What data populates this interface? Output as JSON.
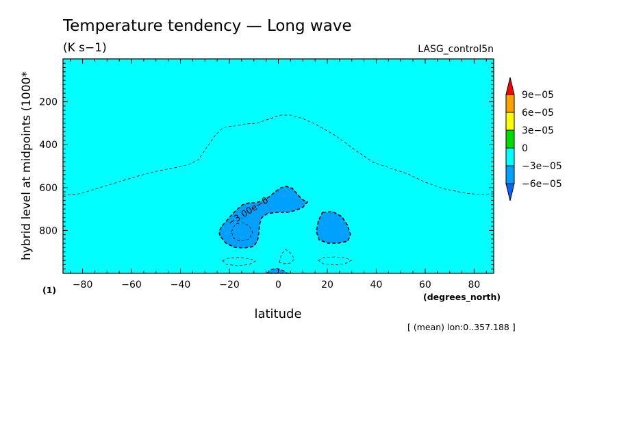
{
  "chart_data": {
    "type": "contour",
    "title": "Temperature tendency — Long wave",
    "units": "(K s−1)",
    "dataset": "LASG_control5n",
    "xlabel": "latitude",
    "x_unit": "(degrees_north)",
    "ylabel": "hybrid level at midpoints (1000*",
    "y_unit": "(1)",
    "footer": "[ (mean) lon:0..357.188 ]",
    "xlim": [
      -88,
      88
    ],
    "ylim": [
      1000,
      0
    ],
    "x_ticks": [
      -80,
      -60,
      -40,
      -20,
      0,
      20,
      40,
      60,
      80
    ],
    "x_tick_labels": [
      "−80",
      "−60",
      "−40",
      "−20",
      "0",
      "20",
      "40",
      "60",
      "80"
    ],
    "y_ticks": [
      200,
      400,
      600,
      800
    ],
    "y_tick_labels": [
      "200",
      "400",
      "600",
      "800"
    ],
    "contour_label": "−3.00e−0",
    "colorbar": {
      "levels": [
        "9e−05",
        "6e−05",
        "3e−05",
        "0",
        "−3e−05",
        "−6e−05"
      ],
      "colors": [
        "#ff0000",
        "#ffa000",
        "#ffff00",
        "#00dc00",
        "#00ffff",
        "#00a0ff",
        "#0064ff"
      ]
    },
    "background_color": "#00ffff",
    "regions_below_minus3e-05": [
      {
        "name": "southern-cell",
        "lat": [
          -25,
          13
        ],
        "level": [
          590,
          870
        ]
      },
      {
        "name": "northern-cell",
        "lat": [
          16,
          30
        ],
        "level": [
          710,
          860
        ]
      },
      {
        "name": "bottom-cell",
        "lat": [
          -5,
          6
        ],
        "level": [
          980,
          1000
        ]
      }
    ]
  }
}
